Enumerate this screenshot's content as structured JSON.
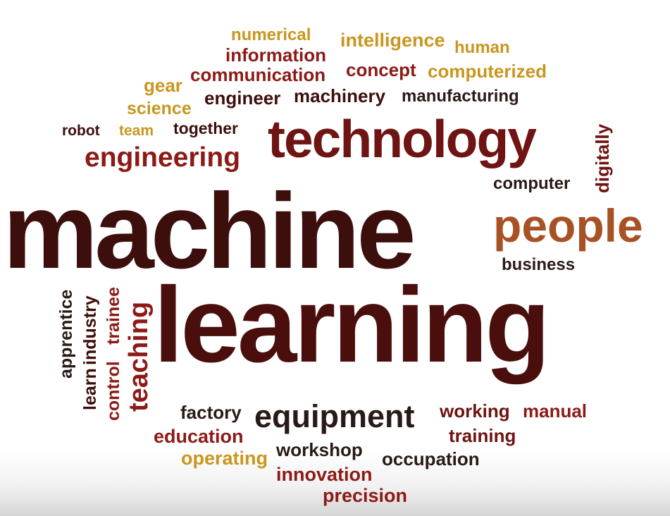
{
  "colors": {
    "dark_brown": "#3d0f0c",
    "dark_red": "#6e1412",
    "red": "#8c1a17",
    "gold": "#c9961e",
    "orange_brown": "#a65225",
    "near_black": "#2a1a17"
  },
  "words": [
    {
      "text": "numerical",
      "color": "#c9961e"
    },
    {
      "text": "intelligence",
      "color": "#c9961e"
    },
    {
      "text": "human",
      "color": "#c9961e"
    },
    {
      "text": "information",
      "color": "#8c1a17"
    },
    {
      "text": "communication",
      "color": "#8c1a17"
    },
    {
      "text": "concept",
      "color": "#8c1a17"
    },
    {
      "text": "computerized",
      "color": "#c9961e"
    },
    {
      "text": "gear",
      "color": "#c9961e"
    },
    {
      "text": "engineer",
      "color": "#3d0f0c"
    },
    {
      "text": "machinery",
      "color": "#3d0f0c"
    },
    {
      "text": "manufacturing",
      "color": "#2a1a17"
    },
    {
      "text": "science",
      "color": "#c9961e"
    },
    {
      "text": "robot",
      "color": "#3d0f0c"
    },
    {
      "text": "team",
      "color": "#c9961e"
    },
    {
      "text": "together",
      "color": "#3d0f0c"
    },
    {
      "text": "technology",
      "color": "#6e1412"
    },
    {
      "text": "digitally",
      "color": "#6e1412"
    },
    {
      "text": "engineering",
      "color": "#8c1a17"
    },
    {
      "text": "computer",
      "color": "#2a1a17"
    },
    {
      "text": "machine",
      "color": "#3d0f0c"
    },
    {
      "text": "people",
      "color": "#a65225"
    },
    {
      "text": "business",
      "color": "#2a1a17"
    },
    {
      "text": "learning",
      "color": "#4a0f0c"
    },
    {
      "text": "apprentice",
      "color": "#2a1a17"
    },
    {
      "text": "learn",
      "color": "#3d0f0c"
    },
    {
      "text": "industry",
      "color": "#3d0f0c"
    },
    {
      "text": "control",
      "color": "#8c1a17"
    },
    {
      "text": "trainee",
      "color": "#8c1a17"
    },
    {
      "text": "teaching",
      "color": "#8c1a17"
    },
    {
      "text": "factory",
      "color": "#2a1a17"
    },
    {
      "text": "equipment",
      "color": "#2a1a17"
    },
    {
      "text": "working",
      "color": "#6e1412"
    },
    {
      "text": "manual",
      "color": "#8c1a17"
    },
    {
      "text": "education",
      "color": "#8c1a17"
    },
    {
      "text": "training",
      "color": "#6e1412"
    },
    {
      "text": "operating",
      "color": "#c9961e"
    },
    {
      "text": "workshop",
      "color": "#2a1a17"
    },
    {
      "text": "occupation",
      "color": "#2a1a17"
    },
    {
      "text": "innovation",
      "color": "#8c1a17"
    },
    {
      "text": "precision",
      "color": "#8c1a17"
    }
  ]
}
